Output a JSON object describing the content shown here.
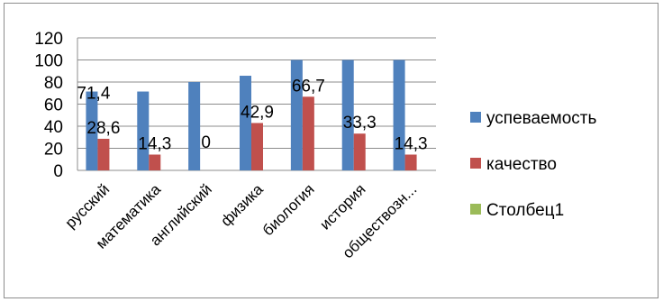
{
  "chart_data": {
    "type": "bar",
    "categories": [
      "русский",
      "математика",
      "английский",
      "физика",
      "биология",
      "история",
      "обществозн..."
    ],
    "series": [
      {
        "name": "успеваемость",
        "color": "#4f81bd",
        "values": [
          71.4,
          71.4,
          80,
          85.7,
          100,
          100,
          100
        ],
        "labels": [
          "71,4",
          null,
          null,
          null,
          null,
          null,
          null
        ]
      },
      {
        "name": "качество",
        "color": "#c0504d",
        "values": [
          28.6,
          14.3,
          0,
          42.9,
          66.7,
          33.3,
          14.3
        ],
        "labels": [
          "28,6",
          "14,3",
          "0",
          "42,9",
          "66,7",
          "33,3",
          "14,3"
        ]
      },
      {
        "name": "Столбец1",
        "color": "#9bbb59",
        "values": [
          0,
          0,
          0,
          0,
          0,
          0,
          0
        ],
        "labels": [
          null,
          null,
          null,
          null,
          null,
          null,
          null
        ]
      }
    ],
    "yticks": [
      0,
      20,
      40,
      60,
      80,
      100,
      120
    ],
    "ylim": [
      0,
      120
    ],
    "grid": true,
    "legend": "right"
  }
}
